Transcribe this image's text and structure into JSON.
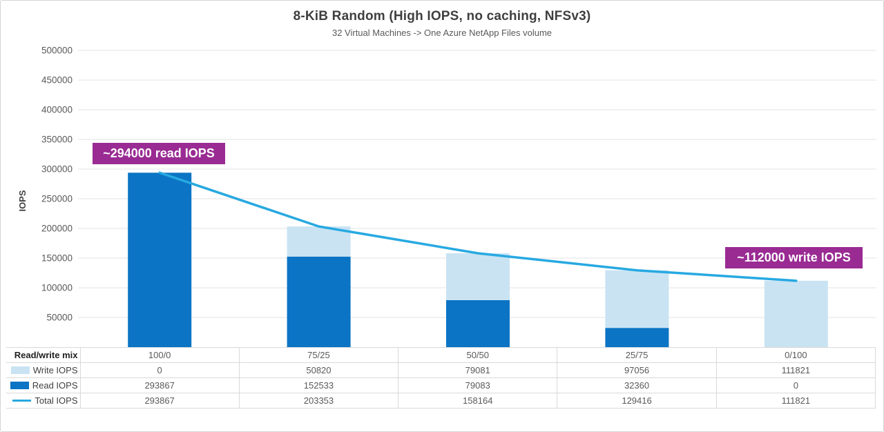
{
  "chart_data": {
    "type": "bar",
    "variant": "stacked-bars-with-line-overlay-and-data-table",
    "title": "8-KiB Random (High IOPS, no caching, NFSv3)",
    "subtitle": "32 Virtual Machines -> One Azure NetApp Files volume",
    "ylabel": "IOPS",
    "xlabel": "",
    "ylim": [
      0,
      500000
    ],
    "yticks": [
      50000,
      100000,
      150000,
      200000,
      250000,
      300000,
      350000,
      400000,
      450000,
      500000
    ],
    "grid": true,
    "legend_position": "table-left",
    "row_header": "Read/write mix",
    "categories": [
      "100/0",
      "75/25",
      "50/50",
      "25/75",
      "0/100"
    ],
    "series": [
      {
        "name": "Write IOPS",
        "type": "bar",
        "stack_order": "top",
        "color": "#C9E3F3",
        "values": [
          0,
          50820,
          79081,
          97056,
          111821
        ]
      },
      {
        "name": "Read IOPS",
        "type": "bar",
        "stack_order": "bottom",
        "color": "#0B74C4",
        "values": [
          293867,
          152533,
          79083,
          32360,
          0
        ]
      },
      {
        "name": "Total IOPS",
        "type": "line",
        "color": "#27A9E1",
        "values": [
          293867,
          203353,
          158164,
          129416,
          111821
        ]
      }
    ],
    "annotations": [
      {
        "text": "~294000 read IOPS",
        "color": "#992B93",
        "target": "first-bar-top"
      },
      {
        "text": "~112000 write IOPS",
        "color": "#992B93",
        "target": "last-bar-top"
      }
    ]
  }
}
